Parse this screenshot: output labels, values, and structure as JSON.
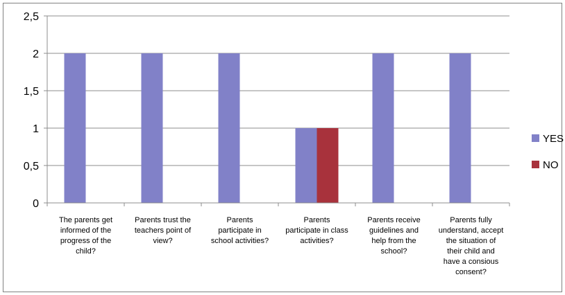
{
  "chart_data": {
    "type": "bar",
    "categories": [
      [
        "The parents get",
        "informed of the",
        "progress of the",
        "child?"
      ],
      [
        "Parents trust the",
        "teachers point of",
        "view?"
      ],
      [
        "Parents",
        "participate in",
        "school activities?"
      ],
      [
        "Parents",
        "participate in class",
        "activities?"
      ],
      [
        "Parents receive",
        "guidelines and",
        "help from the",
        "school?"
      ],
      [
        "Parents fully",
        "understand, accept",
        "the situation of",
        "their child and",
        "have a consious",
        "consent?"
      ]
    ],
    "series": [
      {
        "name": "YES",
        "color": "#8181c8",
        "values": [
          2,
          2,
          2,
          1,
          2,
          2
        ]
      },
      {
        "name": "NO",
        "color": "#a8323c",
        "values": [
          0,
          0,
          0,
          1,
          0,
          0
        ]
      }
    ],
    "ylim": [
      0,
      2.5
    ],
    "yticks": [
      "0",
      "0,5",
      "1",
      "1,5",
      "2",
      "2,5"
    ],
    "grid": true,
    "legend_position": "right"
  }
}
